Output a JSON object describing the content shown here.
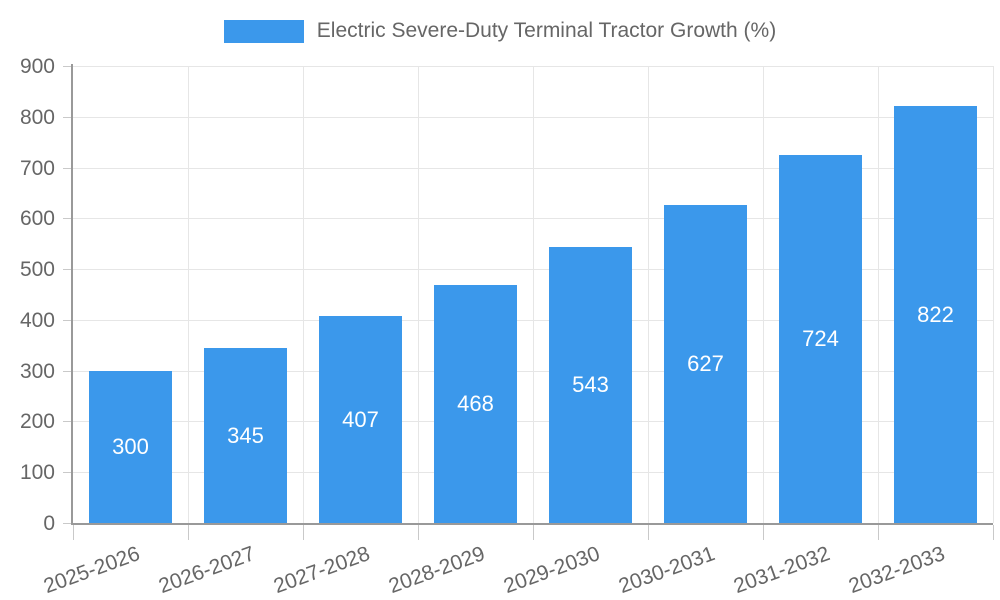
{
  "legend": {
    "label": "Electric Severe-Duty Terminal Tractor Growth (%)",
    "position": "top"
  },
  "chart_data": {
    "type": "bar",
    "title": "Electric Severe-Duty Terminal Tractor Growth (%)",
    "categories": [
      "2025-2026",
      "2026-2027",
      "2027-2028",
      "2028-2029",
      "2029-2030",
      "2030-2031",
      "2031-2032",
      "2032-2033"
    ],
    "values": [
      300,
      345,
      407,
      468,
      543,
      627,
      724,
      822
    ],
    "series": [
      {
        "name": "Electric Severe-Duty Terminal Tractor Growth (%)",
        "values": [
          300,
          345,
          407,
          468,
          543,
          627,
          724,
          822
        ]
      }
    ],
    "xlabel": "",
    "ylabel": "",
    "ylim": [
      0,
      900
    ],
    "yticks": [
      0,
      100,
      200,
      300,
      400,
      500,
      600,
      700,
      800,
      900
    ],
    "grid": true,
    "legend_position": "top",
    "value_labels": "inside-center"
  },
  "colors": {
    "bar": "#3b98eb",
    "grid": "#e6e6e6",
    "axis": "#999999",
    "tick": "#c9c9c9",
    "text": "#666666",
    "value_label": "#ffffff",
    "background": "#ffffff"
  }
}
